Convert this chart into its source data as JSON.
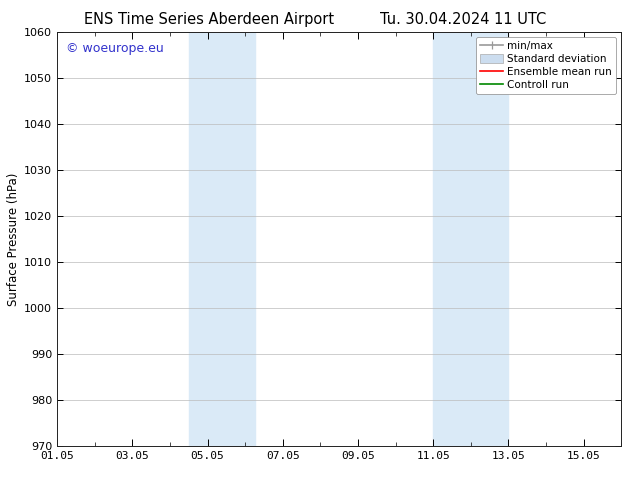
{
  "title_left": "ENS Time Series Aberdeen Airport",
  "title_right": "Tu. 30.04.2024 11 UTC",
  "ylabel": "Surface Pressure (hPa)",
  "ylim": [
    970,
    1060
  ],
  "yticks": [
    970,
    980,
    990,
    1000,
    1010,
    1020,
    1030,
    1040,
    1050,
    1060
  ],
  "xlim": [
    0,
    15
  ],
  "xtick_labels": [
    "01.05",
    "03.05",
    "05.05",
    "07.05",
    "09.05",
    "11.05",
    "13.05",
    "15.05"
  ],
  "xtick_positions": [
    0,
    2,
    4,
    6,
    8,
    10,
    12,
    14
  ],
  "shaded_bands": [
    {
      "start": 3.5,
      "end": 5.25
    },
    {
      "start": 10.0,
      "end": 12.0
    }
  ],
  "band_color": "#daeaf7",
  "watermark_text": "© woeurope.eu",
  "watermark_color": "#3333cc",
  "legend_entries": [
    {
      "label": "min/max",
      "color": "#999999",
      "lw": 1.2,
      "ls": "-",
      "type": "line_caps"
    },
    {
      "label": "Standard deviation",
      "color": "#ccddef",
      "lw": 8,
      "ls": "-",
      "type": "band"
    },
    {
      "label": "Ensemble mean run",
      "color": "#ff0000",
      "lw": 1.2,
      "ls": "-",
      "type": "line"
    },
    {
      "label": "Controll run",
      "color": "#008800",
      "lw": 1.2,
      "ls": "-",
      "type": "line"
    }
  ],
  "background_color": "#ffffff",
  "grid_color": "#bbbbbb",
  "title_fontsize": 10.5,
  "tick_fontsize": 8,
  "ylabel_fontsize": 8.5,
  "watermark_fontsize": 9,
  "legend_fontsize": 7.5
}
